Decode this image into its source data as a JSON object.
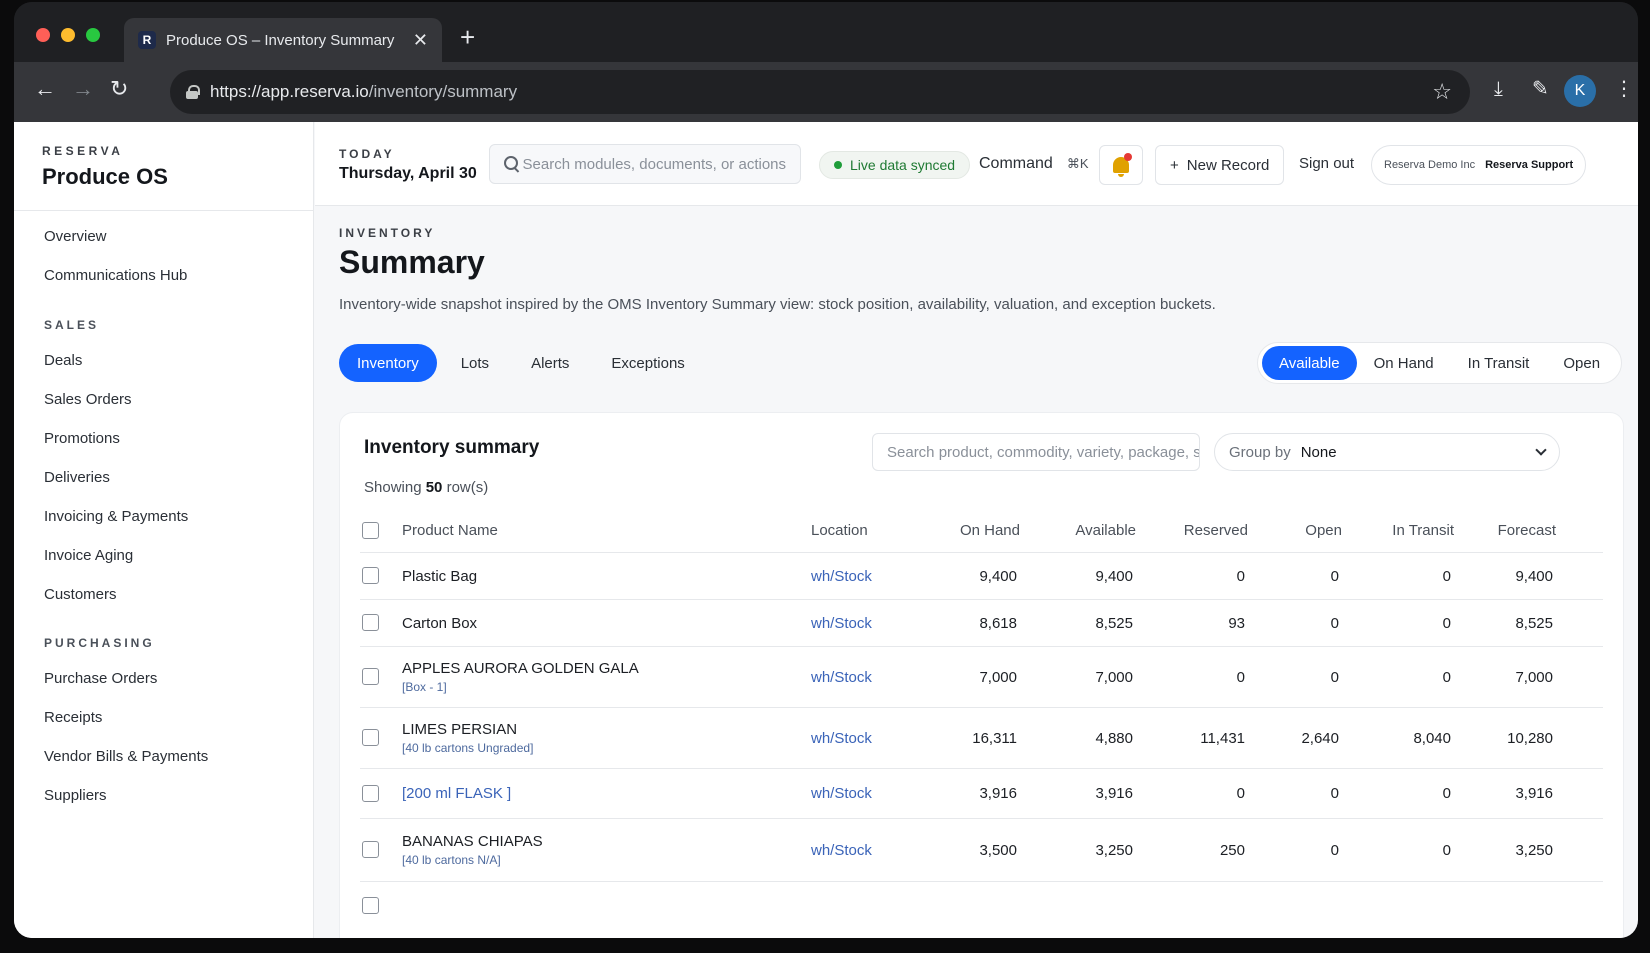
{
  "browser": {
    "tab_title": "Produce OS – Inventory Summary",
    "favicon_letter": "R",
    "url_host": "https://app.reserva.io",
    "url_path": "/inventory/summary",
    "profile_initial": "K"
  },
  "sidebar": {
    "brand_small": "RESERVA",
    "brand_big": "Produce OS",
    "top_items": [
      "Overview",
      "Communications Hub"
    ],
    "sales_label": "SALES",
    "sales_items": [
      "Deals",
      "Sales Orders",
      "Promotions",
      "Deliveries",
      "Invoicing & Payments",
      "Invoice Aging",
      "Customers"
    ],
    "purchasing_label": "PURCHASING",
    "purchasing_items": [
      "Purchase Orders",
      "Receipts",
      "Vendor Bills & Payments",
      "Suppliers"
    ]
  },
  "topbar": {
    "today_label": "TODAY",
    "today_date": "Thursday, April 30",
    "search_placeholder": "Search modules, documents, or actions",
    "sync_status": "Live data synced",
    "command_label": "Command",
    "command_shortcut": "⌘K",
    "new_record": "New Record",
    "sign_out": "Sign out",
    "org_name": "Reserva Demo Inc",
    "org_user": "Reserva Support"
  },
  "page": {
    "section": "INVENTORY",
    "title": "Summary",
    "description": "Inventory-wide snapshot inspired by the OMS Inventory Summary view: stock position, availability, valuation, and exception buckets.",
    "tabs": [
      "Inventory",
      "Lots",
      "Alerts",
      "Exceptions"
    ],
    "active_tab": "Inventory",
    "segments": [
      "Available",
      "On Hand",
      "In Transit",
      "Open"
    ],
    "active_segment": "Available"
  },
  "table": {
    "title": "Inventory summary",
    "showing_prefix": "Showing",
    "row_count": "50",
    "showing_suffix": "row(s)",
    "search_placeholder": "Search product, commodity, variety, package, s",
    "group_by_label": "Group by",
    "group_by_value": "None",
    "columns": [
      "Product Name",
      "Location",
      "On Hand",
      "Available",
      "Reserved",
      "Open",
      "In Transit",
      "Forecast"
    ],
    "rows": [
      {
        "name": "Plastic Bag",
        "sub": "",
        "location": "wh/Stock",
        "on_hand": "9,400",
        "available": "9,400",
        "reserved": "0",
        "open": "0",
        "in_transit": "0",
        "forecast": "9,400"
      },
      {
        "name": "Carton Box",
        "sub": "",
        "location": "wh/Stock",
        "on_hand": "8,618",
        "available": "8,525",
        "reserved": "93",
        "open": "0",
        "in_transit": "0",
        "forecast": "8,525"
      },
      {
        "name": "APPLES AURORA GOLDEN GALA",
        "sub": "[Box - 1]",
        "location": "wh/Stock",
        "on_hand": "7,000",
        "available": "7,000",
        "reserved": "0",
        "open": "0",
        "in_transit": "0",
        "forecast": "7,000"
      },
      {
        "name": "LIMES PERSIAN",
        "sub": "[40 lb cartons Ungraded]",
        "location": "wh/Stock",
        "on_hand": "16,311",
        "available": "4,880",
        "reserved": "11,431",
        "open": "2,640",
        "in_transit": "8,040",
        "forecast": "10,280"
      },
      {
        "name": "[200 ml FLASK ]",
        "sub": "",
        "location": "wh/Stock",
        "on_hand": "3,916",
        "available": "3,916",
        "reserved": "0",
        "open": "0",
        "in_transit": "0",
        "forecast": "3,916"
      },
      {
        "name": "BANANAS CHIAPAS",
        "sub": "[40 lb cartons N/A]",
        "location": "wh/Stock",
        "on_hand": "3,500",
        "available": "3,250",
        "reserved": "250",
        "open": "0",
        "in_transit": "0",
        "forecast": "3,250"
      }
    ]
  },
  "icons": [
    "close-icon",
    "plus-icon",
    "back-icon",
    "forward-icon",
    "reload-icon",
    "lock-icon",
    "star-icon",
    "download-icon",
    "extensions-icon",
    "menu-icon",
    "search-icon",
    "bell-icon",
    "chevron-down-icon"
  ],
  "colors": {
    "accent": "#1463ff",
    "sync_green": "#1f7a33",
    "alert_red": "#e53935",
    "bell": "#e0a100",
    "link": "#3a63b8"
  }
}
